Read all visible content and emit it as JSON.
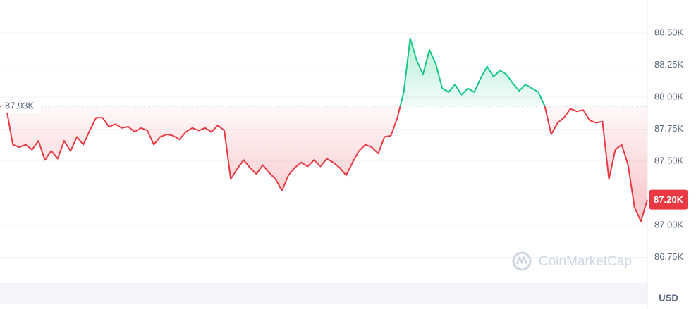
{
  "chart_data": {
    "type": "line",
    "values": [
      87.93,
      87.91,
      87.63,
      87.61,
      87.63,
      87.59,
      87.66,
      87.51,
      87.58,
      87.52,
      87.66,
      87.58,
      87.69,
      87.63,
      87.74,
      87.84,
      87.84,
      87.77,
      87.79,
      87.76,
      87.77,
      87.73,
      87.76,
      87.74,
      87.63,
      87.69,
      87.71,
      87.7,
      87.67,
      87.73,
      87.76,
      87.74,
      87.76,
      87.73,
      87.78,
      87.74,
      87.36,
      87.44,
      87.51,
      87.45,
      87.4,
      87.47,
      87.41,
      87.36,
      87.27,
      87.39,
      87.45,
      87.49,
      87.46,
      87.51,
      87.46,
      87.52,
      87.49,
      87.45,
      87.39,
      87.49,
      87.58,
      87.63,
      87.61,
      87.56,
      87.69,
      87.7,
      87.84,
      88.04,
      88.46,
      88.29,
      88.18,
      88.37,
      88.26,
      88.07,
      88.04,
      88.1,
      88.02,
      88.07,
      88.04,
      88.15,
      88.24,
      88.16,
      88.21,
      88.18,
      88.11,
      88.05,
      88.1,
      88.07,
      88.04,
      87.93,
      87.71,
      87.8,
      87.84,
      87.91,
      87.89,
      87.9,
      87.82,
      87.8,
      87.81,
      87.36,
      87.59,
      87.63,
      87.47,
      87.14,
      87.03,
      87.2
    ],
    "baseline": {
      "value": 87.93,
      "label": "87.93K"
    },
    "last_price": {
      "value": 87.2,
      "label": "87.20K"
    },
    "ylim": [
      86.56,
      88.76
    ],
    "yticks": [
      {
        "value": 86.75,
        "label": "86.75K"
      },
      {
        "value": 87.0,
        "label": "87.00K"
      },
      {
        "value": 87.5,
        "label": "87.50K"
      },
      {
        "value": 87.75,
        "label": "87.75K"
      },
      {
        "value": 88.0,
        "label": "88.00K"
      },
      {
        "value": 88.25,
        "label": "88.25K"
      },
      {
        "value": 88.5,
        "label": "88.50K"
      }
    ],
    "grid": true,
    "up_color": "#16c784",
    "down_color": "#ea3943",
    "watermark": "CoinMarketCap",
    "currency": "USD"
  }
}
